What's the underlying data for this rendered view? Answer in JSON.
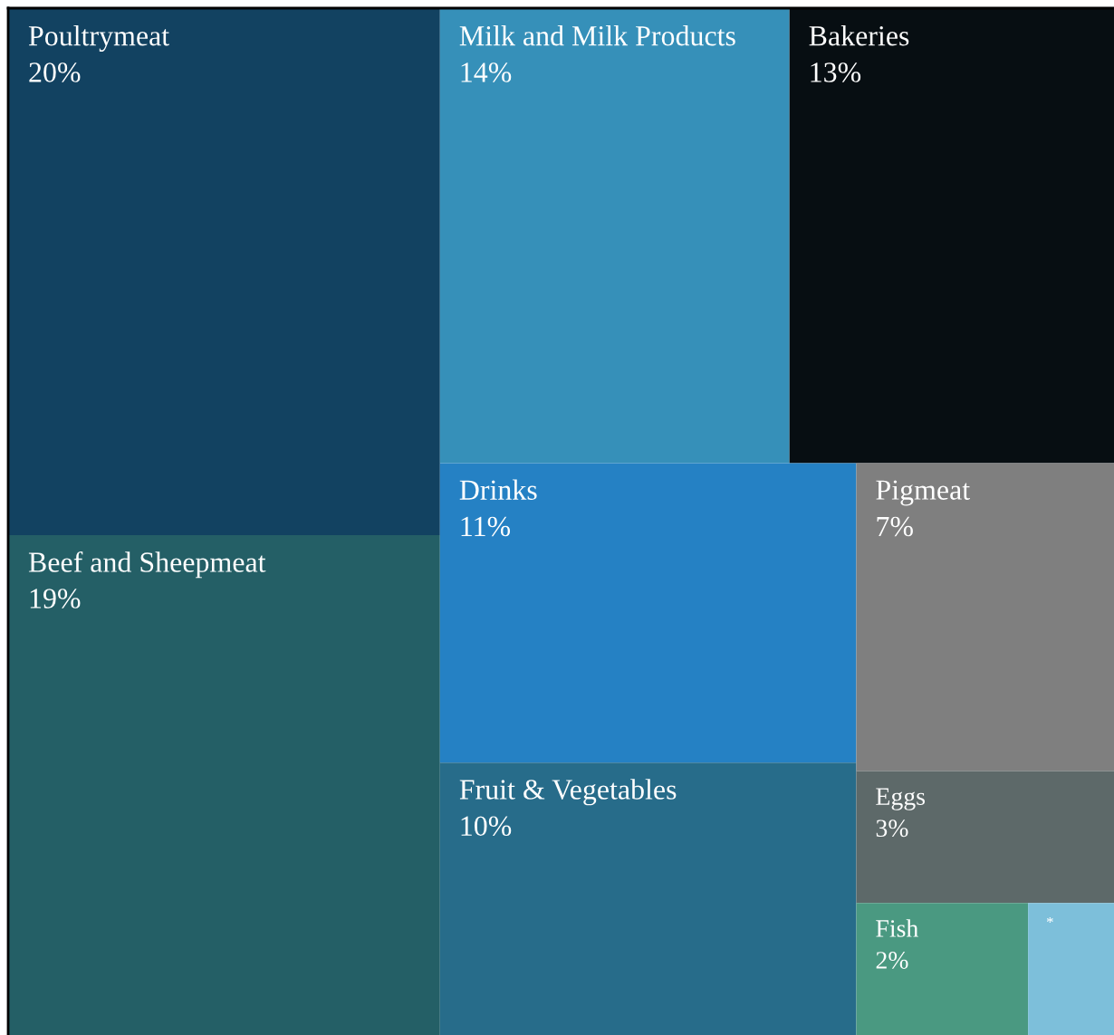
{
  "chart_data": {
    "type": "other",
    "categories": [
      "Poultrymeat",
      "Beef and Sheepmeat",
      "Milk and Milk Products",
      "Bakeries",
      "Drinks",
      "Fruit & Vegetables",
      "Pigmeat",
      "Eggs",
      "Fish",
      "*"
    ],
    "values": [
      20,
      19,
      14,
      13,
      11,
      10,
      7,
      3,
      2,
      null
    ],
    "value_labels": [
      "20%",
      "19%",
      "14%",
      "13%",
      "11%",
      "10%",
      "7%",
      "3%",
      "2%",
      null
    ],
    "colors": [
      "#124261",
      "#245f66",
      "#3690b9",
      "#070e12",
      "#2581c4",
      "#276c8a",
      "#7f7f7f",
      "#5d6969",
      "#4a9981",
      "#7dbfda"
    ]
  }
}
